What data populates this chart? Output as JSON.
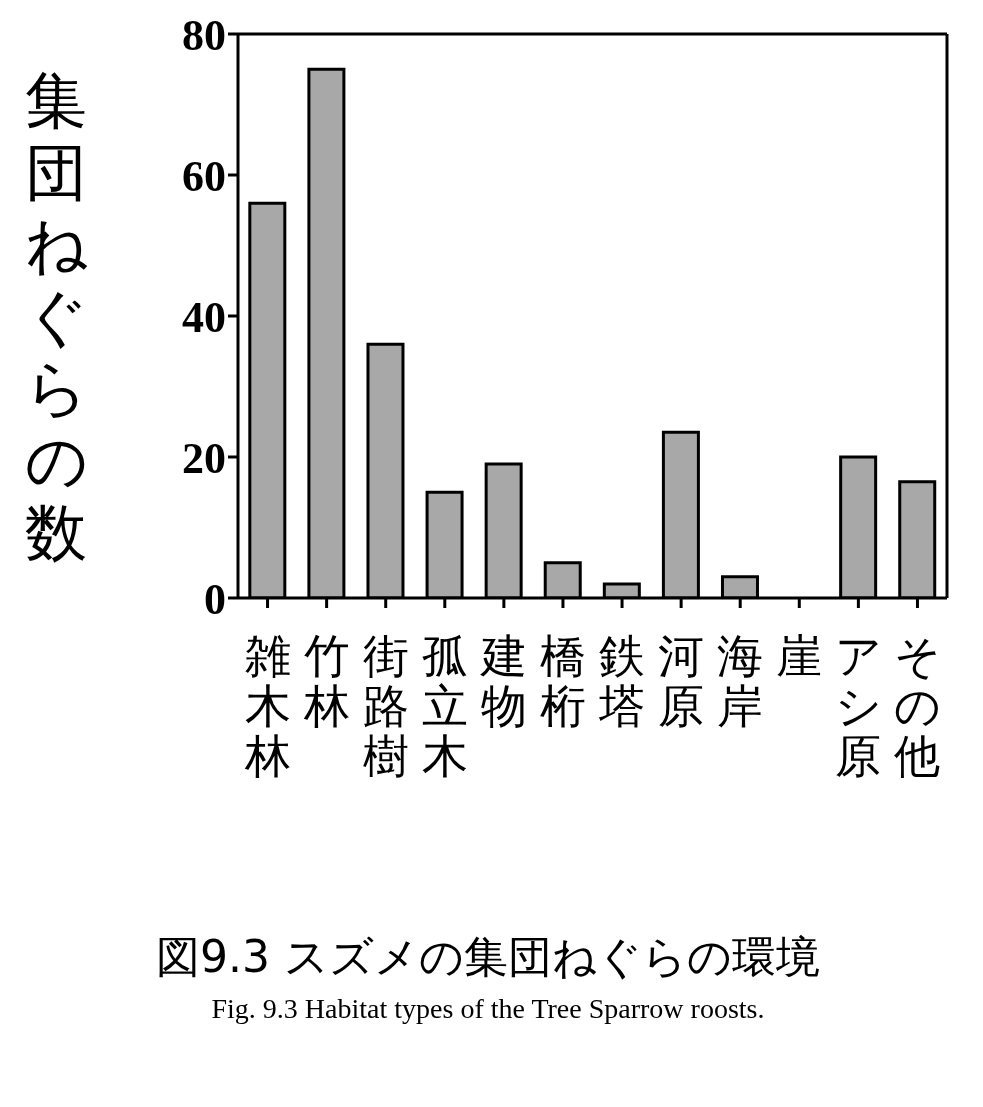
{
  "chart_data": {
    "type": "bar",
    "title": "図9.3 スズメの集団ねぐらの環境",
    "subtitle": "Fig. 9.3 Habitat types of the Tree Sparrow roosts.",
    "ylabel": "集団ねぐらの数",
    "categories": [
      "雑木林",
      "竹林",
      "街路樹",
      "孤立木",
      "建物",
      "橋桁",
      "鉄塔",
      "河原",
      "海岸",
      "崖",
      "アシ原",
      "その他"
    ],
    "values": [
      56,
      75,
      36,
      15,
      19,
      5,
      2,
      23.5,
      3,
      0,
      20,
      16.5
    ],
    "color": "#a8a8a8",
    "ylim": [
      0,
      80
    ],
    "yticks": [
      0,
      20,
      40,
      60,
      80
    ]
  }
}
